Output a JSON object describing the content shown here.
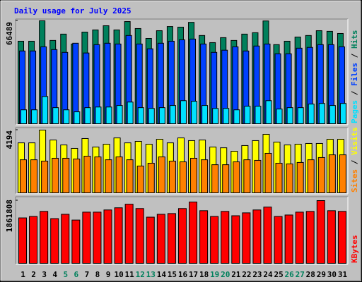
{
  "title": "Daily usage for July 2025",
  "legend_separator": "/",
  "chart_data": [
    {
      "type": "bar",
      "ylim": [
        0,
        66489
      ],
      "yticks": [
        66489
      ],
      "series": [
        {
          "name": "Hits",
          "color": "#00805c",
          "values": [
            53300,
            53300,
            66489,
            53800,
            57900,
            51500,
            59200,
            60600,
            63300,
            60600,
            66000,
            61500,
            55100,
            60100,
            62800,
            62400,
            65500,
            57000,
            52400,
            55600,
            53800,
            57900,
            58800,
            66400,
            51100,
            53300,
            56000,
            57000,
            60100,
            59700,
            58300
          ]
        },
        {
          "name": "Files",
          "color": "#0040ff",
          "values": [
            47000,
            47000,
            49700,
            47900,
            46100,
            52000,
            45700,
            51100,
            52000,
            51500,
            57000,
            51500,
            48400,
            52000,
            53300,
            54200,
            54700,
            51500,
            46100,
            47500,
            49700,
            47000,
            50200,
            51500,
            45200,
            45200,
            48800,
            49300,
            51100,
            51100,
            49700
          ]
        },
        {
          "name": "Pages",
          "color": "#00e0ff",
          "values": [
            9000,
            9000,
            17600,
            10400,
            9000,
            7700,
            10400,
            10800,
            10800,
            11800,
            14000,
            10400,
            9900,
            10400,
            11800,
            14900,
            14500,
            11800,
            9900,
            9900,
            9000,
            11300,
            11300,
            14900,
            9500,
            10400,
            10400,
            12700,
            13100,
            11800,
            13100
          ]
        }
      ]
    },
    {
      "type": "bar",
      "ylim": [
        0,
        4194
      ],
      "yticks": [
        4194
      ],
      "series": [
        {
          "name": "Visits",
          "color": "#ffff00",
          "values": [
            3340,
            3340,
            4194,
            3530,
            3200,
            2970,
            3630,
            3060,
            3250,
            3670,
            3340,
            3440,
            3250,
            3580,
            3340,
            3670,
            3490,
            3530,
            3060,
            3010,
            2780,
            3160,
            3490,
            3910,
            3390,
            3200,
            3250,
            3300,
            3300,
            3580,
            3580
          ]
        },
        {
          "name": "Sites",
          "color": "#ff8000",
          "values": [
            2210,
            2210,
            2120,
            2310,
            2310,
            2260,
            2450,
            2400,
            2210,
            2400,
            2210,
            1790,
            1980,
            2400,
            2120,
            2070,
            2310,
            2210,
            1880,
            1880,
            2070,
            2210,
            2170,
            2640,
            1980,
            1930,
            2030,
            2210,
            2360,
            2540,
            2540
          ]
        }
      ]
    },
    {
      "type": "bar",
      "ylim": [
        0,
        1861808
      ],
      "yticks": [
        1861808
      ],
      "categories": [
        "1",
        "2",
        "3",
        "4",
        "5",
        "6",
        "7",
        "8",
        "9",
        "10",
        "11",
        "12",
        "13",
        "14",
        "15",
        "16",
        "17",
        "18",
        "19",
        "20",
        "21",
        "22",
        "23",
        "24",
        "25",
        "26",
        "27",
        "28",
        "29",
        "30",
        "31"
      ],
      "category_colors": [
        "#000000",
        "#000000",
        "#000000",
        "#000000",
        "#00805c",
        "#00805c",
        "#000000",
        "#000000",
        "#000000",
        "#000000",
        "#000000",
        "#00805c",
        "#00805c",
        "#000000",
        "#000000",
        "#000000",
        "#000000",
        "#000000",
        "#00805c",
        "#00805c",
        "#000000",
        "#000000",
        "#000000",
        "#000000",
        "#000000",
        "#00805c",
        "#00805c",
        "#000000",
        "#000000",
        "#000000",
        "#000000"
      ],
      "series": [
        {
          "name": "KBytes",
          "color": "#ff0000",
          "values": [
            1348000,
            1391000,
            1541000,
            1327000,
            1455000,
            1284000,
            1519000,
            1519000,
            1584000,
            1648000,
            1755000,
            1626000,
            1370000,
            1455000,
            1477000,
            1626000,
            1819000,
            1562000,
            1391000,
            1541000,
            1412000,
            1498000,
            1584000,
            1669000,
            1391000,
            1434000,
            1519000,
            1541000,
            1861808,
            1562000,
            1541000
          ]
        }
      ]
    }
  ]
}
